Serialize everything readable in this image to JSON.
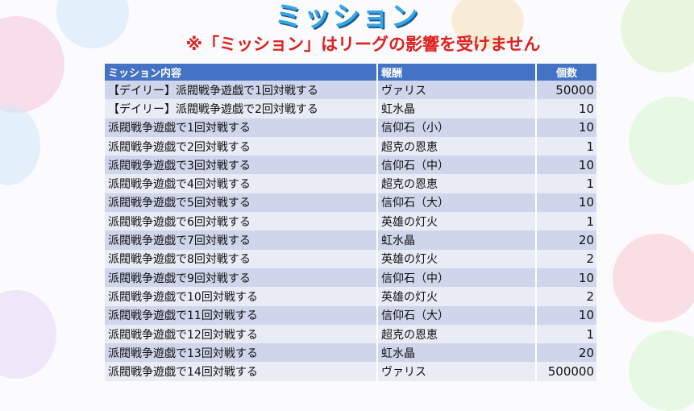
{
  "title": "ミッション",
  "subtitle": "※「ミッション」はリーグの影響を受けません",
  "table": {
    "headers": [
      "ミッション内容",
      "報酬",
      "個数"
    ],
    "rows": [
      {
        "mission": "【デイリー】派閥戦争遊戯で1回対戦する",
        "reward": "ヴァリス",
        "count": "50000"
      },
      {
        "mission": "【デイリー】派閥戦争遊戯で2回対戦する",
        "reward": "虹水晶",
        "count": "10"
      },
      {
        "mission": "派閥戦争遊戯で1回対戦する",
        "reward": "信仰石（小）",
        "count": "10"
      },
      {
        "mission": "派閥戦争遊戯で2回対戦する",
        "reward": "超克の恩恵",
        "count": "1"
      },
      {
        "mission": "派閥戦争遊戯で3回対戦する",
        "reward": "信仰石（中）",
        "count": "10"
      },
      {
        "mission": "派閥戦争遊戯で4回対戦する",
        "reward": "超克の恩恵",
        "count": "1"
      },
      {
        "mission": "派閥戦争遊戯で5回対戦する",
        "reward": "信仰石（大）",
        "count": "10"
      },
      {
        "mission": "派閥戦争遊戯で6回対戦する",
        "reward": "英雄の灯火",
        "count": "1"
      },
      {
        "mission": "派閥戦争遊戯で7回対戦する",
        "reward": "虹水晶",
        "count": "20"
      },
      {
        "mission": "派閥戦争遊戯で8回対戦する",
        "reward": "英雄の灯火",
        "count": "2"
      },
      {
        "mission": "派閥戦争遊戯で9回対戦する",
        "reward": "信仰石（中）",
        "count": "10"
      },
      {
        "mission": "派閥戦争遊戯で10回対戦する",
        "reward": "英雄の灯火",
        "count": "2"
      },
      {
        "mission": "派閥戦争遊戯で11回対戦する",
        "reward": "信仰石（大）",
        "count": "10"
      },
      {
        "mission": "派閥戦争遊戯で12回対戦する",
        "reward": "超克の恩恵",
        "count": "1"
      },
      {
        "mission": "派閥戦争遊戯で13回対戦する",
        "reward": "虹水晶",
        "count": "20"
      },
      {
        "mission": "派閥戦争遊戯で14回対戦する",
        "reward": "ヴァリス",
        "count": "500000"
      }
    ]
  },
  "colors": {
    "title": "#38a6e6",
    "subtitle": "#e0201f",
    "header_bg": "#4472c4",
    "row_odd": "#cfd5ea",
    "row_even": "#e9ebf5"
  }
}
